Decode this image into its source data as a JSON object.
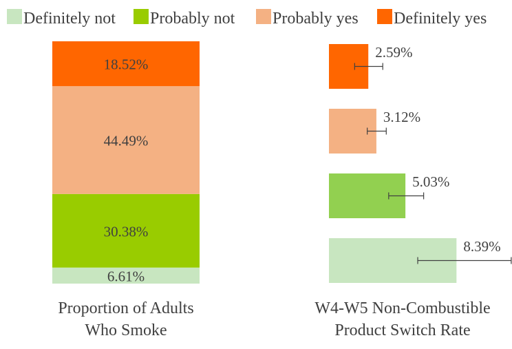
{
  "legend": {
    "placement": "top",
    "entries": [
      {
        "label": "Definitely not",
        "color": "#c8e6c0"
      },
      {
        "label": "Probably not",
        "color": "#99cc00"
      },
      {
        "label": "Probably yes",
        "color": "#f4b183"
      },
      {
        "label": "Definitely yes",
        "color": "#ff6600"
      }
    ]
  },
  "chart_data": [
    {
      "type": "bar",
      "stacked": true,
      "title": "Proportion of Adults Who Smoke",
      "title_lines": [
        "Proportion of Adults",
        "Who Smoke"
      ],
      "ylim": [
        0,
        100
      ],
      "segments": [
        {
          "name": "Definitely not",
          "value": 6.61,
          "label": "6.61%",
          "color": "#c8e6c0"
        },
        {
          "name": "Probably not",
          "value": 30.38,
          "label": "30.38%",
          "color": "#99cc00"
        },
        {
          "name": "Probably yes",
          "value": 44.49,
          "label": "44.49%",
          "color": "#f4b183"
        },
        {
          "name": "Definitely yes",
          "value": 18.52,
          "label": "18.52%",
          "color": "#ff6600"
        }
      ]
    },
    {
      "type": "bar",
      "orientation": "horizontal",
      "title": "W4-W5 Non-Combustible Product Switch Rate",
      "title_lines": [
        "W4-W5 Non-Combustible",
        "Product Switch Rate"
      ],
      "xlim": [
        0,
        11
      ],
      "bars": [
        {
          "name": "Definitely yes",
          "value": 2.59,
          "label": "2.59%",
          "err_low": 0.9,
          "err_high": 0.95,
          "color": "#ff6600"
        },
        {
          "name": "Probably yes",
          "value": 3.12,
          "label": "3.12%",
          "err_low": 0.6,
          "err_high": 0.65,
          "color": "#f4b183"
        },
        {
          "name": "Probably not",
          "value": 5.03,
          "label": "5.03%",
          "err_low": 1.1,
          "err_high": 1.2,
          "color": "#92d050"
        },
        {
          "name": "Definitely not",
          "value": 8.39,
          "label": "8.39%",
          "err_low": 2.55,
          "err_high": 3.6,
          "color": "#c8e6c0"
        }
      ]
    }
  ]
}
